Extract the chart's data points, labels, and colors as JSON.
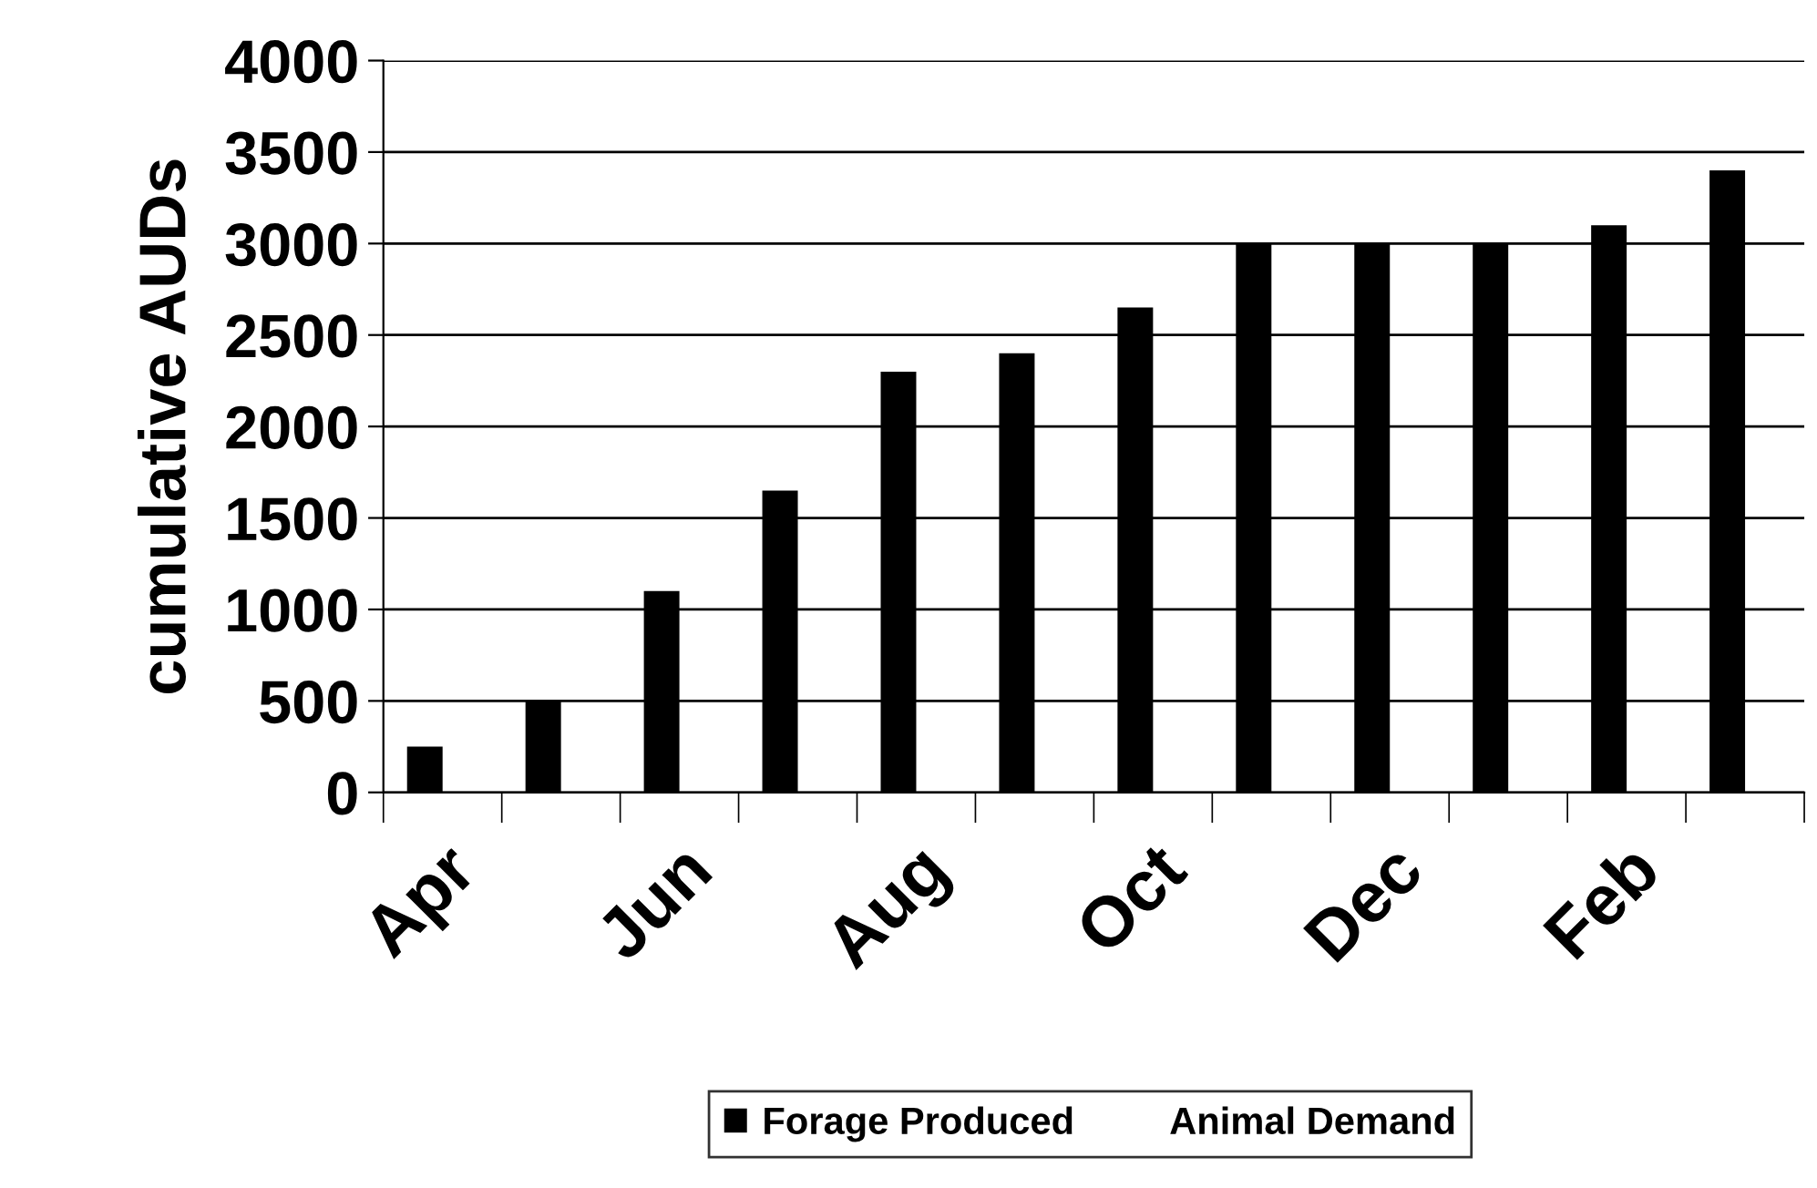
{
  "chart_data": {
    "type": "bar",
    "ylabel": "cumulative AUDs",
    "categories": [
      "Apr",
      null,
      "Jun",
      null,
      "Aug",
      null,
      "Oct",
      null,
      "Dec",
      null,
      "Feb",
      null
    ],
    "series": [
      {
        "name": "Forage Produced",
        "color": "#000000",
        "values": [
          250,
          500,
          1100,
          1650,
          2300,
          2400,
          2650,
          3000,
          3000,
          3000,
          3100,
          3400
        ]
      },
      {
        "name": "Animal Demand",
        "values": [
          null,
          null,
          null,
          null,
          null,
          null,
          null,
          null,
          null,
          null,
          null,
          null
        ]
      }
    ],
    "ylim": [
      0,
      4000
    ],
    "yticks": [
      0,
      500,
      1000,
      1500,
      2000,
      2500,
      3000,
      3500,
      4000
    ],
    "grid": "y",
    "legend": "bottom"
  }
}
